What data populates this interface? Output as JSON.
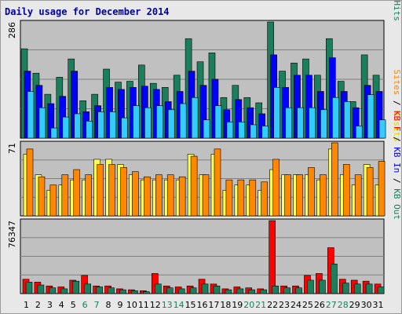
{
  "title": "Daily usage for December 2014",
  "colors": {
    "hits": "#1b7f5c",
    "files": "#0000ff",
    "pages": "#33ccff",
    "visits": "#ffff4d",
    "sites": "#ff8800",
    "kb_in": "#0000ff",
    "kb_out": "#1b7f5c",
    "kb_f": "#ff0000",
    "plot_bg": "#c0c0c0",
    "weekend_label": "#1b7f5c"
  },
  "chart_data": [
    {
      "type": "bar",
      "ymax_label": "286",
      "ylim": [
        0,
        286
      ],
      "right_legend": [
        {
          "text": "Pages",
          "color": "#33ccff"
        },
        {
          "text": " / ",
          "color": "#000000"
        },
        {
          "text": "Files",
          "color": "#0000ff"
        },
        {
          "text": " / ",
          "color": "#000000"
        },
        {
          "text": "Hits",
          "color": "#1b7f5c"
        }
      ],
      "series": [
        {
          "name": "Hits",
          "values": [
            220,
            160,
            108,
            150,
            195,
            92,
            108,
            170,
            138,
            140,
            180,
            135,
            125,
            155,
            245,
            188,
            210,
            100,
            130,
            100,
            87,
            286,
            165,
            185,
            195,
            155,
            245,
            140,
            90,
            205,
            155
          ]
        },
        {
          "name": "Files",
          "values": [
            165,
            130,
            85,
            103,
            165,
            65,
            80,
            125,
            120,
            125,
            128,
            120,
            90,
            115,
            165,
            130,
            145,
            70,
            95,
            75,
            60,
            205,
            125,
            155,
            155,
            115,
            198,
            115,
            75,
            130,
            115
          ]
        },
        {
          "name": "Pages",
          "values": [
            115,
            75,
            25,
            52,
            60,
            42,
            65,
            65,
            50,
            80,
            75,
            80,
            70,
            85,
            100,
            45,
            80,
            40,
            40,
            33,
            30,
            125,
            75,
            75,
            75,
            70,
            100,
            90,
            30,
            107,
            45
          ]
        }
      ]
    },
    {
      "type": "bar",
      "ymax_label": "71",
      "ylim": [
        0,
        71
      ],
      "right_legend": [
        {
          "text": "Sites",
          "color": "#ff8800"
        },
        {
          "text": " / ",
          "color": "#000000"
        },
        {
          "text": "Visits",
          "color": "#d8d800"
        }
      ],
      "series": [
        {
          "name": "Visits",
          "values": [
            60,
            40,
            25,
            30,
            35,
            35,
            55,
            55,
            50,
            40,
            35,
            35,
            35,
            35,
            60,
            40,
            60,
            25,
            30,
            30,
            25,
            45,
            40,
            40,
            40,
            35,
            65,
            40,
            30,
            50,
            30
          ]
        },
        {
          "name": "Sites",
          "values": [
            65,
            38,
            30,
            40,
            45,
            40,
            50,
            50,
            47,
            43,
            38,
            40,
            40,
            38,
            58,
            40,
            65,
            35,
            35,
            35,
            33,
            55,
            40,
            40,
            47,
            40,
            71,
            50,
            40,
            47,
            53
          ]
        }
      ]
    },
    {
      "type": "bar",
      "ymax_label": "76347",
      "ylim": [
        0,
        76347
      ],
      "right_legend": [
        {
          "text": "KB F",
          "color": "#ff0000"
        },
        {
          "text": " / ",
          "color": "#000000"
        },
        {
          "text": "KB In",
          "color": "#0000ff"
        },
        {
          "text": " / ",
          "color": "#000000"
        },
        {
          "text": "KB Out",
          "color": "#1b7f5c"
        }
      ],
      "series": [
        {
          "name": "KB F",
          "values": [
            15000,
            12000,
            8000,
            7000,
            14000,
            19000,
            8000,
            8000,
            5000,
            4000,
            3000,
            21000,
            8000,
            7000,
            8000,
            15000,
            10000,
            5000,
            7000,
            6000,
            5000,
            76347,
            8000,
            8000,
            19000,
            21000,
            48000,
            15000,
            14000,
            13000,
            10000
          ]
        },
        {
          "name": "KB In",
          "values": [
            0,
            0,
            0,
            0,
            0,
            0,
            0,
            0,
            0,
            0,
            0,
            0,
            0,
            0,
            0,
            0,
            0,
            0,
            0,
            0,
            0,
            0,
            0,
            0,
            0,
            0,
            0,
            0,
            0,
            0,
            0
          ]
        },
        {
          "name": "KB Out",
          "values": [
            12000,
            9000,
            6000,
            5000,
            13000,
            10000,
            7000,
            6000,
            4000,
            3000,
            2000,
            10000,
            6000,
            5000,
            6000,
            10000,
            8000,
            4000,
            5000,
            4000,
            4000,
            8000,
            6000,
            6000,
            14000,
            14000,
            31000,
            11000,
            10000,
            10000,
            7000
          ]
        }
      ]
    }
  ],
  "x_labels": [
    "1",
    "2",
    "3",
    "4",
    "5",
    "6",
    "7",
    "8",
    "9",
    "10",
    "11",
    "12",
    "13",
    "14",
    "15",
    "16",
    "17",
    "18",
    "19",
    "20",
    "21",
    "22",
    "23",
    "24",
    "25",
    "26",
    "27",
    "28",
    "29",
    "30",
    "31"
  ],
  "weekend_days": [
    "6",
    "7",
    "13",
    "14",
    "20",
    "21",
    "27",
    "28"
  ]
}
